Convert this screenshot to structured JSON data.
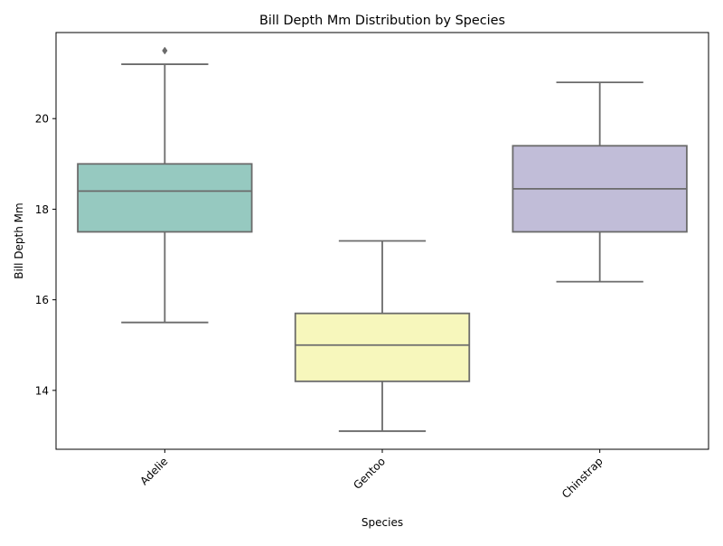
{
  "chart_data": {
    "type": "box",
    "title": "Bill Depth Mm Distribution by Species",
    "xlabel": "Species",
    "ylabel": "Bill Depth Mm",
    "ylim": [
      12.7,
      21.9
    ],
    "yticks": [
      14,
      16,
      18,
      20
    ],
    "grid": false,
    "legend": "none",
    "categories": [
      "Adelie",
      "Gentoo",
      "Chinstrap"
    ],
    "boxes": [
      {
        "category": "Adelie",
        "whisker_low": 15.5,
        "q1": 17.5,
        "median": 18.4,
        "q3": 19.0,
        "whisker_high": 21.2,
        "outliers": [
          21.5
        ],
        "color": "#96c9c0"
      },
      {
        "category": "Gentoo",
        "whisker_low": 13.1,
        "q1": 14.2,
        "median": 15.0,
        "q3": 15.7,
        "whisker_high": 17.3,
        "outliers": [],
        "color": "#f7f7bc"
      },
      {
        "category": "Chinstrap",
        "whisker_low": 16.4,
        "q1": 17.5,
        "median": 18.45,
        "q3": 19.4,
        "whisker_high": 20.8,
        "outliers": [],
        "color": "#c1bdd8"
      }
    ],
    "line_color": "#6b6b6b"
  }
}
